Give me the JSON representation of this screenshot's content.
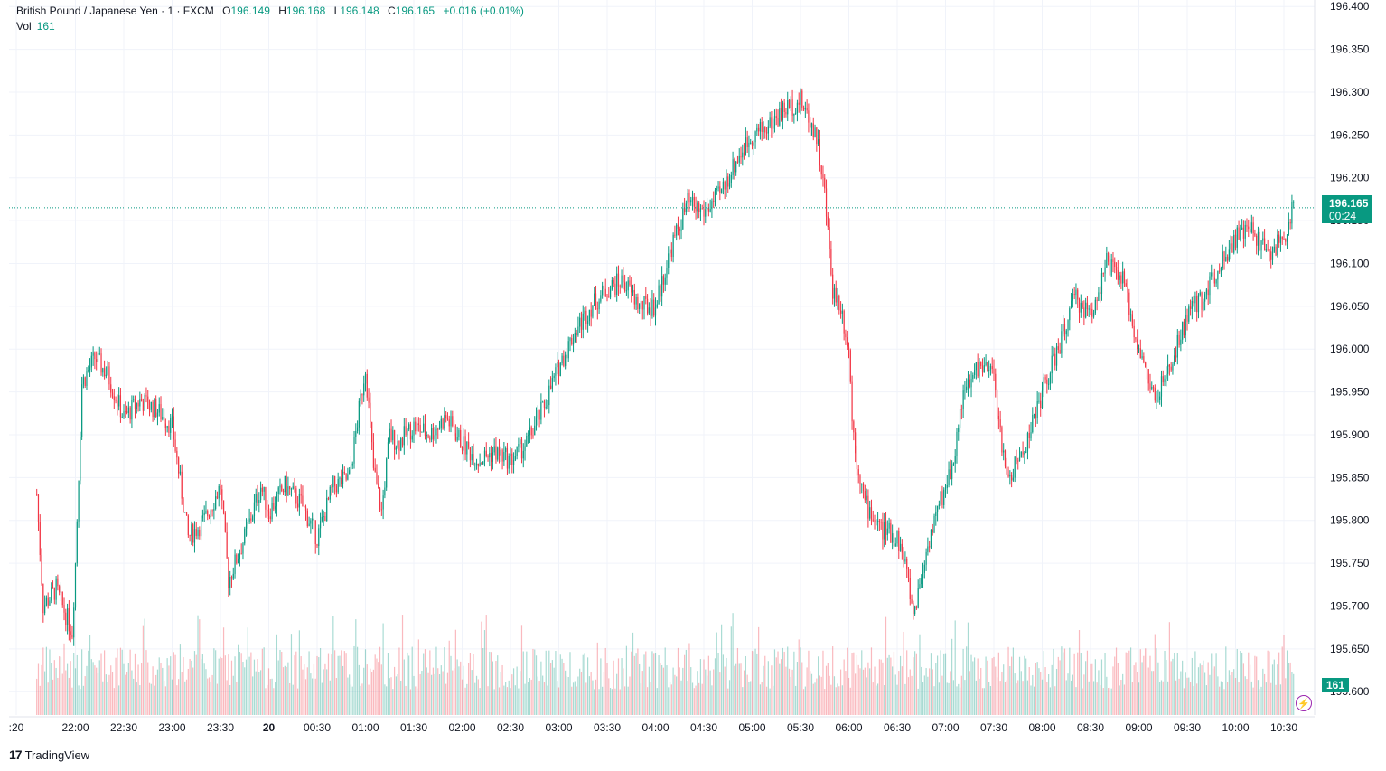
{
  "legend": {
    "symbol": "British Pound / Japanese Yen · 1 · FXCM",
    "o_label": "O",
    "o": "196.149",
    "h_label": "H",
    "h": "196.168",
    "l_label": "L",
    "l": "196.148",
    "c_label": "C",
    "c": "196.165",
    "change": "+0.016 (+0.01%)"
  },
  "volume_legend": {
    "label": "Vol",
    "value": "161"
  },
  "last_price": {
    "price": "196.165",
    "countdown": "00:24"
  },
  "brand": {
    "logo": "17",
    "name": "TradingView"
  },
  "colors": {
    "up": "#089981",
    "down": "#f23645",
    "grid": "#f0f3fa",
    "price_line": "#089981"
  },
  "chart_data": {
    "type": "candlestick",
    "ylim": [
      195.56,
      196.405
    ],
    "y_ticks": [
      "196.400",
      "196.350",
      "196.300",
      "196.250",
      "196.200",
      "196.150",
      "196.100",
      "196.050",
      "196.000",
      "195.950",
      "195.900",
      "195.850",
      "195.800",
      "195.750",
      "195.700",
      "195.650",
      "195.600"
    ],
    "x_ticks": [
      ":20",
      "22:00",
      "22:30",
      "23:00",
      "23:30",
      "20",
      "00:30",
      "01:00",
      "01:30",
      "02:00",
      "02:30",
      "03:00",
      "03:30",
      "04:00",
      "04:30",
      "05:00",
      "05:30",
      "06:00",
      "06:30",
      "07:00",
      "07:30",
      "08:00",
      "08:30",
      "09:00",
      "09:30",
      "10:00",
      "10:30"
    ],
    "close_path_times": [
      "21:36",
      "21:40",
      "21:48",
      "21:58",
      "22:00",
      "22:04",
      "22:12",
      "22:20",
      "22:30",
      "22:40",
      "22:50",
      "23:00",
      "23:10",
      "23:20",
      "23:30",
      "23:35",
      "23:45",
      "23:55",
      "00:00",
      "00:10",
      "00:20",
      "00:30",
      "00:40",
      "00:50",
      "01:00",
      "01:05",
      "01:10",
      "01:15",
      "01:20",
      "01:30",
      "01:40",
      "01:50",
      "02:00",
      "02:10",
      "02:20",
      "02:30",
      "02:40",
      "02:50",
      "03:00",
      "03:10",
      "03:20",
      "03:30",
      "03:40",
      "03:50",
      "04:00",
      "04:10",
      "04:20",
      "04:30",
      "04:40",
      "04:50",
      "05:00",
      "05:10",
      "05:20",
      "05:30",
      "05:40",
      "05:45",
      "05:50",
      "05:55",
      "06:00",
      "06:02",
      "06:05",
      "06:10",
      "06:20",
      "06:30",
      "06:35",
      "06:40",
      "06:50",
      "07:00",
      "07:05",
      "07:10",
      "07:20",
      "07:30",
      "07:35",
      "07:40",
      "07:50",
      "08:00",
      "08:10",
      "08:20",
      "08:30",
      "08:40",
      "08:50",
      "09:00",
      "09:10",
      "09:20",
      "09:30",
      "09:40",
      "09:50",
      "10:00",
      "10:10",
      "10:20",
      "10:30",
      "10:36"
    ],
    "close_path_values": [
      195.83,
      195.7,
      195.72,
      195.67,
      195.75,
      195.96,
      195.99,
      195.97,
      195.92,
      195.94,
      195.93,
      195.91,
      195.78,
      195.8,
      195.84,
      195.73,
      195.78,
      195.84,
      195.81,
      195.84,
      195.82,
      195.78,
      195.84,
      195.85,
      195.98,
      195.86,
      195.81,
      195.9,
      195.89,
      195.91,
      195.9,
      195.92,
      195.89,
      195.87,
      195.88,
      195.87,
      195.89,
      195.93,
      195.98,
      196.02,
      196.05,
      196.07,
      196.08,
      196.05,
      196.05,
      196.12,
      196.17,
      196.16,
      196.18,
      196.22,
      196.25,
      196.26,
      196.28,
      196.29,
      196.25,
      196.18,
      196.07,
      196.05,
      196.0,
      195.92,
      195.87,
      195.82,
      195.79,
      195.78,
      195.75,
      195.69,
      195.78,
      195.84,
      195.87,
      195.94,
      195.98,
      195.97,
      195.88,
      195.85,
      195.89,
      195.95,
      196.0,
      196.06,
      196.04,
      196.1,
      196.08,
      196.0,
      195.94,
      195.98,
      196.04,
      196.06,
      196.1,
      196.13,
      196.14,
      196.11,
      196.13,
      196.165
    ],
    "volume_range": [
      0,
      700
    ],
    "last_volume": 161
  }
}
